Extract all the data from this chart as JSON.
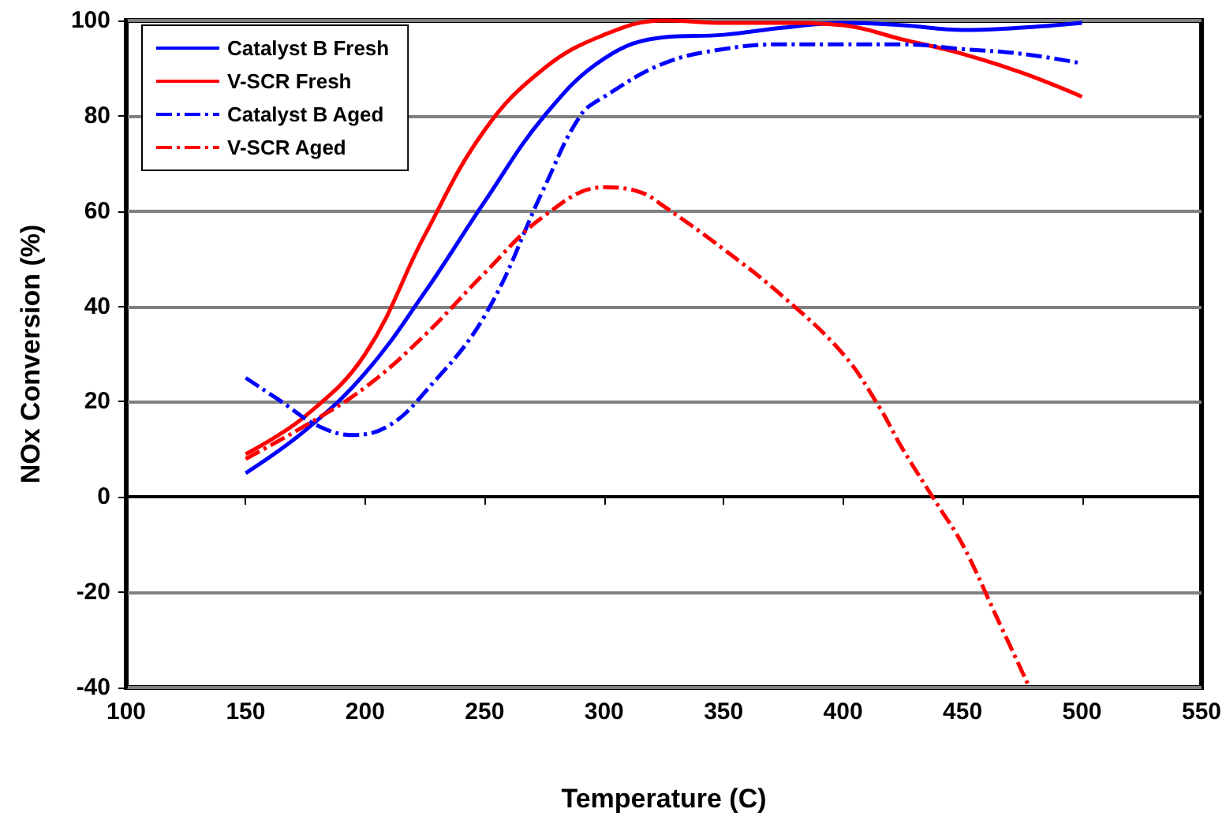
{
  "chart_data": {
    "type": "line",
    "xlabel": "Temperature (C)",
    "ylabel": "NOx Conversion (%)",
    "xlim": [
      100,
      550
    ],
    "xticks": [
      100,
      150,
      200,
      250,
      300,
      350,
      400,
      450,
      500,
      550
    ],
    "ylim": [
      -40,
      100
    ],
    "yticks": [
      -40,
      -20,
      0,
      20,
      40,
      60,
      80,
      100
    ],
    "grid": "y",
    "legend": "top left",
    "marker": "none",
    "series": [
      {
        "name": "Catalyst B Fresh",
        "color": "#0000ff",
        "line_style": "solid",
        "x": [
          150,
          175,
          200,
          225,
          250,
          275,
          300,
          325,
          350,
          375,
          400,
          425,
          450,
          475,
          500
        ],
        "values": [
          5,
          14,
          26,
          43,
          62,
          80,
          92,
          96.5,
          97,
          98.5,
          99.5,
          99,
          98,
          98.5,
          99.5
        ]
      },
      {
        "name": "V-SCR Fresh",
        "color": "#ff0000",
        "line_style": "solid",
        "x": [
          150,
          175,
          200,
          225,
          250,
          275,
          300,
          325,
          350,
          375,
          400,
          425,
          450,
          475,
          500
        ],
        "values": [
          9,
          17,
          30,
          55,
          77,
          90,
          97,
          100,
          99.5,
          99.5,
          99,
          96,
          93,
          89,
          84
        ]
      },
      {
        "name": "Catalyst B Aged",
        "color": "#0000ff",
        "line_style": "dashdot",
        "x": [
          150,
          165,
          180,
          195,
          210,
          225,
          250,
          275,
          290,
          300,
          325,
          350,
          375,
          400,
          425,
          450,
          475,
          500
        ],
        "values": [
          25,
          20,
          15,
          13,
          15,
          22,
          38,
          65,
          80,
          84,
          91,
          94,
          95,
          95,
          95,
          94,
          93,
          91
        ]
      },
      {
        "name": "V-SCR Aged",
        "color": "#ff0000",
        "line_style": "dashdot",
        "x": [
          150,
          175,
          200,
          225,
          250,
          275,
          300,
          315,
          325,
          350,
          375,
          400,
          415,
          425,
          440,
          450,
          465,
          478
        ],
        "values": [
          8,
          15,
          23,
          34,
          47,
          59,
          65,
          64,
          61,
          52,
          42,
          30,
          19,
          10,
          -2,
          -10,
          -26,
          -40
        ]
      }
    ]
  }
}
